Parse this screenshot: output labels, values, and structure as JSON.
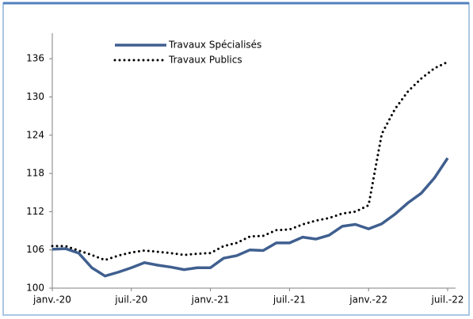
{
  "chart_data": {
    "type": "line",
    "categories": [
      "janv.-20",
      null,
      null,
      null,
      null,
      null,
      "juil.-20",
      null,
      null,
      null,
      null,
      null,
      "janv.-21",
      null,
      null,
      null,
      null,
      null,
      "juil.-21",
      null,
      null,
      null,
      null,
      null,
      "janv.-22",
      null,
      null,
      null,
      null,
      null,
      "juil.-22"
    ],
    "series": [
      {
        "name": "Travaux Spécialisés",
        "color": "#3f5f8f",
        "style": "solid",
        "values": [
          106.1,
          106.2,
          105.5,
          103.2,
          101.9,
          102.5,
          103.2,
          104.0,
          103.6,
          103.3,
          102.9,
          103.2,
          103.2,
          104.7,
          105.1,
          106.0,
          105.9,
          107.1,
          107.1,
          108.0,
          107.7,
          108.3,
          109.7,
          110.0,
          109.3,
          110.1,
          111.6,
          113.4,
          114.9,
          117.3,
          120.4
        ]
      },
      {
        "name": "Travaux Publics",
        "color": "#000000",
        "style": "dotted",
        "values": [
          106.6,
          106.6,
          105.9,
          105.2,
          104.4,
          105.1,
          105.6,
          105.9,
          105.7,
          105.5,
          105.2,
          105.4,
          105.5,
          106.6,
          107.1,
          108.1,
          108.2,
          109.1,
          109.2,
          110.0,
          110.6,
          111.0,
          111.7,
          112.0,
          113.0,
          124.2,
          128.1,
          130.9,
          132.9,
          134.5,
          135.5
        ]
      }
    ],
    "ylim": [
      100,
      140
    ],
    "yticks": [
      100,
      106,
      112,
      118,
      124,
      130,
      136
    ],
    "grid": false,
    "legend": "top"
  }
}
